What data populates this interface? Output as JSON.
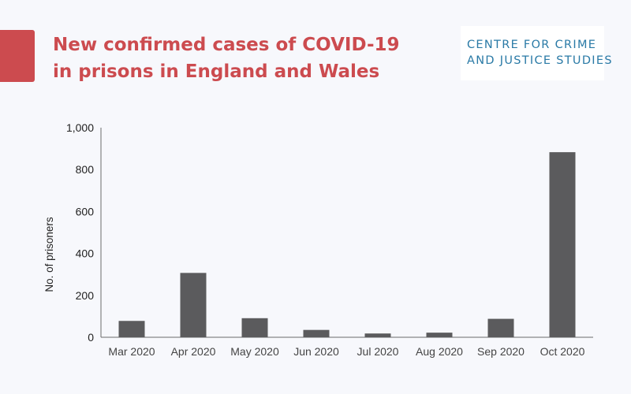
{
  "header": {
    "title_lines": [
      "New confirmed cases of COVID-19",
      "in prisons in England and Wales"
    ],
    "accent_color": "#cc4b4f"
  },
  "logo": {
    "lines": [
      "CENTRE FOR CRIME",
      "AND JUSTICE STUDIES"
    ],
    "color": "#2a7aa6"
  },
  "chart_data": {
    "type": "bar",
    "categories": [
      "Mar 2020",
      "Apr 2020",
      "May 2020",
      "Jun 2020",
      "Jul 2020",
      "Aug 2020",
      "Sep 2020",
      "Oct 2020"
    ],
    "values": [
      78,
      307,
      91,
      35,
      18,
      22,
      88,
      883
    ],
    "title": "",
    "xlabel": "",
    "ylabel": "No. of prisoners",
    "ylim": [
      0,
      1000
    ],
    "yticks": [
      0,
      200,
      400,
      600,
      800,
      1000
    ],
    "ytick_labels": [
      "0",
      "200",
      "400",
      "600",
      "800",
      "1,000"
    ],
    "grid": false,
    "bar_color": "#5b5b5d"
  }
}
